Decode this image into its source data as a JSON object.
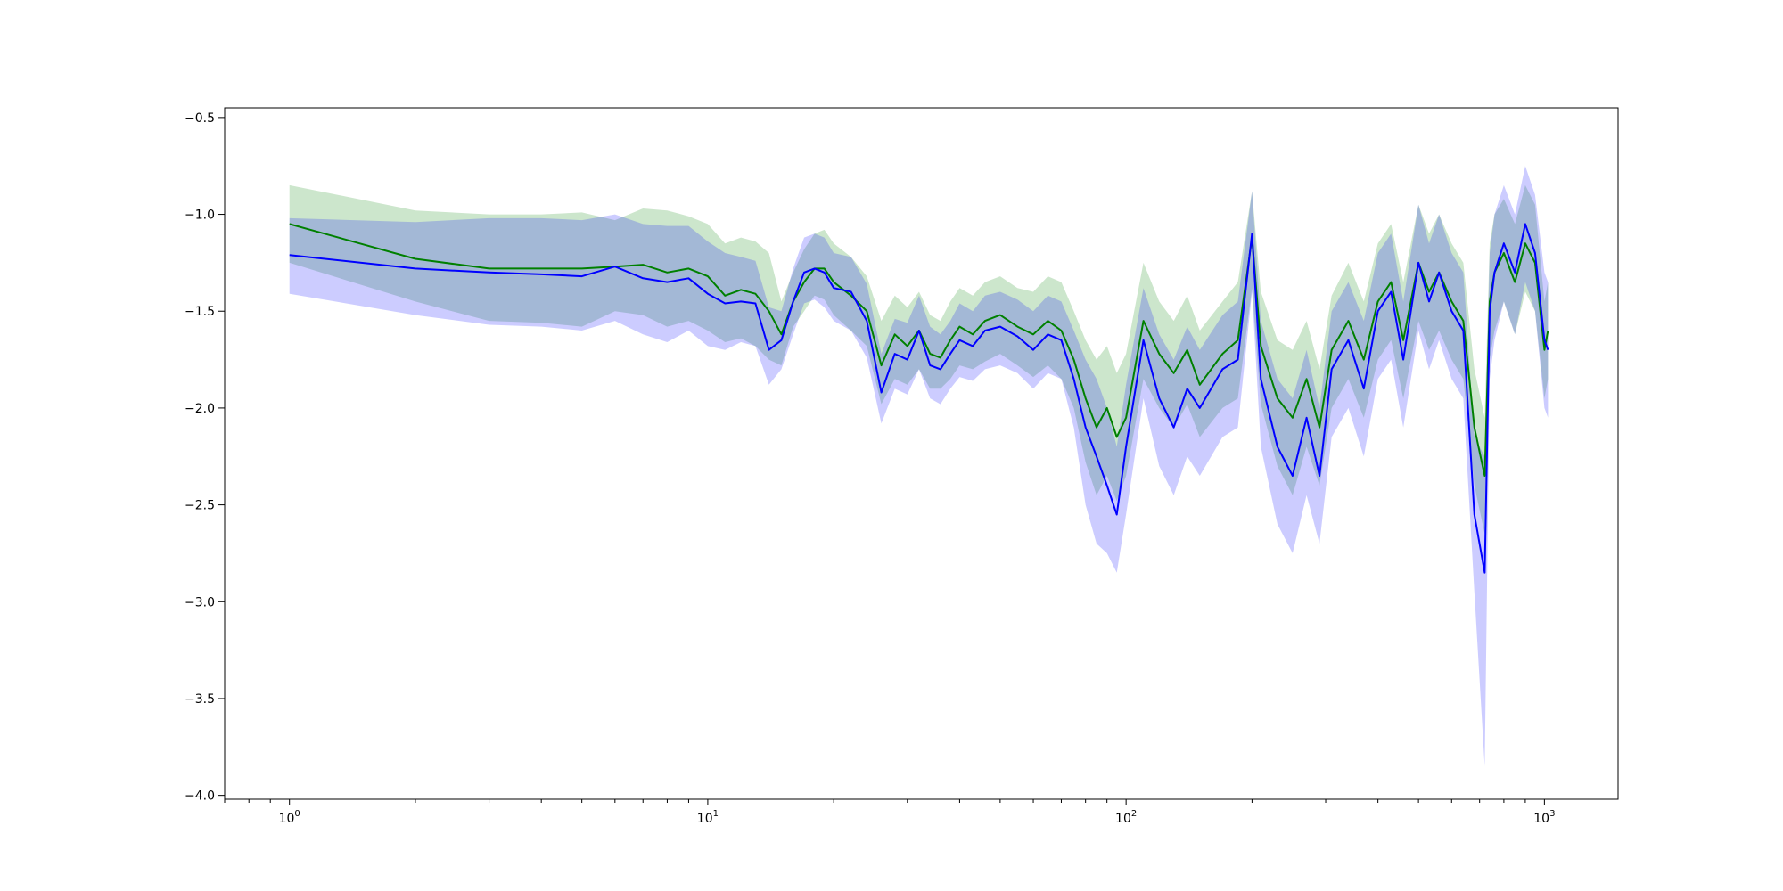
{
  "chart_data": {
    "type": "line",
    "title": "",
    "xlabel": "",
    "ylabel": "",
    "xscale": "log",
    "xlim": [
      0.7,
      1500
    ],
    "ylim": [
      -4.02,
      -0.45
    ],
    "grid": false,
    "legend": "none",
    "xticks": [
      {
        "value": 1,
        "base": "10",
        "exp": "0"
      },
      {
        "value": 10,
        "base": "10",
        "exp": "1"
      },
      {
        "value": 100,
        "base": "10",
        "exp": "2"
      },
      {
        "value": 1000,
        "base": "10",
        "exp": "3"
      }
    ],
    "yticks": [
      {
        "value": -0.5,
        "label": "−0.5"
      },
      {
        "value": -1.0,
        "label": "−1.0"
      },
      {
        "value": -1.5,
        "label": "−1.5"
      },
      {
        "value": -2.0,
        "label": "−2.0"
      },
      {
        "value": -2.5,
        "label": "−2.5"
      },
      {
        "value": -3.0,
        "label": "−3.0"
      },
      {
        "value": -3.5,
        "label": "−3.5"
      },
      {
        "value": -4.0,
        "label": "−4.0"
      }
    ],
    "series": [
      {
        "color": "#008000",
        "band_color": "#008000",
        "x": [
          1,
          2,
          3,
          4,
          5,
          6,
          7,
          8,
          9,
          10,
          11,
          12,
          13,
          14,
          15,
          16,
          17,
          18,
          19,
          20,
          22,
          24,
          26,
          28,
          30,
          32,
          34,
          36,
          38,
          40,
          43,
          46,
          50,
          55,
          60,
          65,
          70,
          75,
          80,
          85,
          90,
          95,
          100,
          110,
          120,
          130,
          140,
          150,
          170,
          185,
          200,
          210,
          230,
          250,
          270,
          290,
          310,
          340,
          370,
          400,
          430,
          460,
          500,
          530,
          560,
          600,
          640,
          680,
          720,
          740,
          760,
          800,
          850,
          900,
          950,
          1000,
          1020
        ],
        "y": [
          -1.05,
          -1.23,
          -1.28,
          -1.28,
          -1.28,
          -1.27,
          -1.26,
          -1.3,
          -1.28,
          -1.32,
          -1.42,
          -1.39,
          -1.41,
          -1.5,
          -1.62,
          -1.45,
          -1.35,
          -1.28,
          -1.28,
          -1.35,
          -1.42,
          -1.5,
          -1.78,
          -1.62,
          -1.68,
          -1.6,
          -1.72,
          -1.74,
          -1.65,
          -1.58,
          -1.62,
          -1.55,
          -1.52,
          -1.58,
          -1.62,
          -1.55,
          -1.6,
          -1.75,
          -1.95,
          -2.1,
          -2.0,
          -2.15,
          -2.05,
          -1.55,
          -1.72,
          -1.82,
          -1.7,
          -1.88,
          -1.72,
          -1.65,
          -1.12,
          -1.68,
          -1.95,
          -2.05,
          -1.85,
          -2.1,
          -1.7,
          -1.55,
          -1.75,
          -1.45,
          -1.35,
          -1.65,
          -1.25,
          -1.4,
          -1.3,
          -1.45,
          -1.55,
          -2.1,
          -2.35,
          -1.45,
          -1.3,
          -1.2,
          -1.35,
          -1.15,
          -1.25,
          -1.7,
          -1.6
        ],
        "lower": [
          -1.25,
          -1.45,
          -1.55,
          -1.56,
          -1.58,
          -1.5,
          -1.52,
          -1.58,
          -1.55,
          -1.6,
          -1.66,
          -1.64,
          -1.68,
          -1.75,
          -1.78,
          -1.58,
          -1.5,
          -1.42,
          -1.44,
          -1.52,
          -1.6,
          -1.68,
          -1.98,
          -1.85,
          -1.88,
          -1.8,
          -1.9,
          -1.9,
          -1.85,
          -1.78,
          -1.8,
          -1.76,
          -1.72,
          -1.78,
          -1.84,
          -1.78,
          -1.85,
          -2.0,
          -2.28,
          -2.45,
          -2.35,
          -2.48,
          -2.35,
          -1.85,
          -2.0,
          -2.1,
          -1.98,
          -2.15,
          -2.0,
          -1.95,
          -1.38,
          -1.98,
          -2.3,
          -2.45,
          -2.2,
          -2.4,
          -2.0,
          -1.85,
          -2.05,
          -1.75,
          -1.65,
          -1.95,
          -1.55,
          -1.7,
          -1.6,
          -1.75,
          -1.85,
          -2.4,
          -2.65,
          -1.75,
          -1.6,
          -1.45,
          -1.62,
          -1.4,
          -1.5,
          -1.95,
          -1.85
        ],
        "upper": [
          -0.85,
          -0.98,
          -1.0,
          -1.0,
          -0.99,
          -1.03,
          -0.97,
          -0.98,
          -1.01,
          -1.05,
          -1.15,
          -1.12,
          -1.14,
          -1.2,
          -1.45,
          -1.3,
          -1.18,
          -1.1,
          -1.08,
          -1.15,
          -1.22,
          -1.32,
          -1.55,
          -1.42,
          -1.48,
          -1.4,
          -1.52,
          -1.55,
          -1.45,
          -1.38,
          -1.42,
          -1.35,
          -1.32,
          -1.38,
          -1.4,
          -1.32,
          -1.35,
          -1.5,
          -1.65,
          -1.75,
          -1.68,
          -1.82,
          -1.72,
          -1.25,
          -1.45,
          -1.55,
          -1.42,
          -1.6,
          -1.45,
          -1.35,
          -0.88,
          -1.4,
          -1.65,
          -1.7,
          -1.55,
          -1.8,
          -1.42,
          -1.25,
          -1.45,
          -1.15,
          -1.05,
          -1.35,
          -0.95,
          -1.1,
          -1.0,
          -1.15,
          -1.25,
          -1.8,
          -2.05,
          -1.15,
          -1.0,
          -0.92,
          -1.05,
          -0.85,
          -0.95,
          -1.45,
          -1.35
        ]
      },
      {
        "color": "#0000ff",
        "band_color": "#0000ff",
        "x": [
          1,
          2,
          3,
          4,
          5,
          6,
          7,
          8,
          9,
          10,
          11,
          12,
          13,
          14,
          15,
          16,
          17,
          18,
          19,
          20,
          22,
          24,
          26,
          28,
          30,
          32,
          34,
          36,
          38,
          40,
          43,
          46,
          50,
          55,
          60,
          65,
          70,
          75,
          80,
          85,
          90,
          95,
          100,
          110,
          120,
          130,
          140,
          150,
          170,
          185,
          200,
          210,
          230,
          250,
          270,
          290,
          310,
          340,
          370,
          400,
          430,
          460,
          500,
          530,
          560,
          600,
          640,
          680,
          720,
          740,
          760,
          800,
          850,
          900,
          950,
          1000,
          1020
        ],
        "y": [
          -1.21,
          -1.28,
          -1.3,
          -1.31,
          -1.32,
          -1.27,
          -1.33,
          -1.35,
          -1.33,
          -1.41,
          -1.46,
          -1.45,
          -1.46,
          -1.7,
          -1.65,
          -1.45,
          -1.3,
          -1.28,
          -1.3,
          -1.38,
          -1.4,
          -1.55,
          -1.92,
          -1.72,
          -1.75,
          -1.6,
          -1.78,
          -1.8,
          -1.72,
          -1.65,
          -1.68,
          -1.6,
          -1.58,
          -1.63,
          -1.7,
          -1.62,
          -1.65,
          -1.85,
          -2.1,
          -2.25,
          -2.4,
          -2.55,
          -2.2,
          -1.65,
          -1.95,
          -2.1,
          -1.9,
          -2.0,
          -1.8,
          -1.75,
          -1.1,
          -1.85,
          -2.2,
          -2.35,
          -2.05,
          -2.35,
          -1.8,
          -1.65,
          -1.9,
          -1.5,
          -1.4,
          -1.75,
          -1.25,
          -1.45,
          -1.3,
          -1.5,
          -1.6,
          -2.55,
          -2.85,
          -1.5,
          -1.3,
          -1.15,
          -1.3,
          -1.05,
          -1.2,
          -1.65,
          -1.7
        ],
        "lower": [
          -1.41,
          -1.52,
          -1.57,
          -1.58,
          -1.6,
          -1.55,
          -1.62,
          -1.66,
          -1.6,
          -1.68,
          -1.7,
          -1.66,
          -1.68,
          -1.88,
          -1.8,
          -1.62,
          -1.46,
          -1.44,
          -1.48,
          -1.55,
          -1.6,
          -1.74,
          -2.08,
          -1.9,
          -1.93,
          -1.8,
          -1.95,
          -1.98,
          -1.9,
          -1.84,
          -1.86,
          -1.8,
          -1.78,
          -1.82,
          -1.9,
          -1.82,
          -1.85,
          -2.1,
          -2.5,
          -2.7,
          -2.75,
          -2.85,
          -2.55,
          -1.95,
          -2.3,
          -2.45,
          -2.25,
          -2.35,
          -2.15,
          -2.1,
          -1.4,
          -2.2,
          -2.6,
          -2.75,
          -2.45,
          -2.7,
          -2.15,
          -2.0,
          -2.25,
          -1.85,
          -1.75,
          -2.1,
          -1.6,
          -1.8,
          -1.65,
          -1.85,
          -1.95,
          -2.95,
          -3.85,
          -1.85,
          -1.65,
          -1.45,
          -1.62,
          -1.35,
          -1.5,
          -2.0,
          -2.05
        ],
        "upper": [
          -1.02,
          -1.04,
          -1.02,
          -1.02,
          -1.03,
          -1.0,
          -1.05,
          -1.06,
          -1.06,
          -1.14,
          -1.2,
          -1.22,
          -1.24,
          -1.48,
          -1.5,
          -1.28,
          -1.12,
          -1.1,
          -1.12,
          -1.2,
          -1.22,
          -1.36,
          -1.72,
          -1.54,
          -1.56,
          -1.42,
          -1.58,
          -1.62,
          -1.55,
          -1.46,
          -1.5,
          -1.42,
          -1.4,
          -1.44,
          -1.5,
          -1.42,
          -1.45,
          -1.6,
          -1.75,
          -1.85,
          -2.0,
          -2.2,
          -1.88,
          -1.38,
          -1.62,
          -1.75,
          -1.58,
          -1.7,
          -1.52,
          -1.45,
          -0.88,
          -1.55,
          -1.85,
          -1.95,
          -1.7,
          -2.0,
          -1.5,
          -1.35,
          -1.55,
          -1.2,
          -1.1,
          -1.45,
          -0.95,
          -1.15,
          -1.0,
          -1.2,
          -1.3,
          -2.15,
          -2.25,
          -1.2,
          -1.0,
          -0.85,
          -1.0,
          -0.75,
          -0.9,
          -1.3,
          -1.35
        ]
      }
    ]
  }
}
